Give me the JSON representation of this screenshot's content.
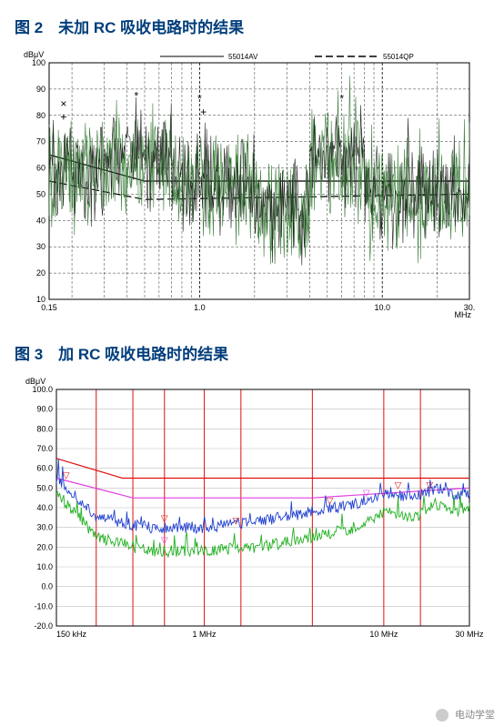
{
  "fig2": {
    "title": "图 2　未加 RC 吸收电路时的结果",
    "type": "line-spectrum",
    "y_label": "dBμV",
    "x_label": "MHz",
    "x_scale": "log",
    "xlim": [
      0.15,
      30
    ],
    "ylim": [
      10,
      100
    ],
    "y_ticks": [
      10,
      20,
      30,
      40,
      50,
      60,
      70,
      80,
      90,
      100
    ],
    "x_ticks_major": [
      0.15,
      1.0,
      10.0,
      30.0
    ],
    "x_tick_labels": [
      "0.15",
      "1.0",
      "10.0",
      "30."
    ],
    "legend": [
      {
        "label": "55014AV",
        "dash": "solid"
      },
      {
        "label": "55014QP",
        "dash": "dash"
      }
    ],
    "limit_lines": {
      "av_solid": [
        [
          0.15,
          65
        ],
        [
          0.5,
          55
        ],
        [
          30,
          55
        ]
      ],
      "qp_dash": [
        [
          0.15,
          55
        ],
        [
          0.5,
          48
        ],
        [
          30,
          50
        ]
      ]
    },
    "trace_colors": {
      "green": "#3a7d3a",
      "black": "#222222"
    },
    "grid_color": "#000000",
    "background_color": "#ffffff",
    "marker_points": [
      {
        "x": 0.18,
        "y": 83,
        "sym": "×"
      },
      {
        "x": 0.18,
        "y": 78,
        "sym": "+"
      },
      {
        "x": 0.45,
        "y": 86,
        "sym": "*"
      },
      {
        "x": 1.0,
        "y": 85,
        "sym": "*"
      },
      {
        "x": 1.05,
        "y": 80,
        "sym": "+"
      },
      {
        "x": 6.0,
        "y": 85,
        "sym": "*"
      }
    ],
    "title_fontsize": 17,
    "axis_fontsize": 9
  },
  "fig3": {
    "title": "图 3　加 RC 吸收电路时的结果",
    "type": "line-spectrum",
    "y_label": "dBμV",
    "x_scale": "log",
    "xlim_labels": [
      "150 kHz",
      "1 MHz",
      "10 MHz",
      "30 MHz"
    ],
    "xlim_pos": [
      0.15,
      1,
      10,
      30
    ],
    "ylim": [
      -20,
      100
    ],
    "y_ticks": [
      -20,
      -10,
      0,
      10,
      20,
      30,
      40,
      50,
      60,
      70,
      80,
      90,
      100
    ],
    "y_tick_labels": [
      "-20.0",
      "-10.0",
      "0.0",
      "10.0",
      "20.0",
      "30.0",
      "40.0",
      "50.0",
      "60.0",
      "70.0",
      "80.0",
      "90.0",
      "100.0"
    ],
    "grid_color": "#bfbfbf",
    "vline_color": "#e01010",
    "background_color": "#ffffff",
    "vlines_x": [
      0.15,
      0.25,
      0.4,
      0.6,
      1.0,
      1.6,
      4.0,
      10,
      16,
      30
    ],
    "limit_lines": {
      "red": {
        "color": "#e01010",
        "pts": [
          [
            0.15,
            65
          ],
          [
            0.35,
            55
          ],
          [
            30,
            55
          ]
        ]
      },
      "pink": {
        "color": "#e040e0",
        "pts": [
          [
            0.15,
            55
          ],
          [
            0.4,
            45
          ],
          [
            4,
            45
          ],
          [
            30,
            50
          ]
        ]
      }
    },
    "traces": {
      "blue": {
        "color": "#2040d0",
        "base": [
          [
            0.15,
            55
          ],
          [
            0.25,
            35
          ],
          [
            0.5,
            30
          ],
          [
            1,
            30
          ],
          [
            2,
            33
          ],
          [
            4,
            38
          ],
          [
            7,
            42
          ],
          [
            10,
            48
          ],
          [
            15,
            45
          ],
          [
            20,
            50
          ],
          [
            25,
            45
          ],
          [
            30,
            48
          ]
        ]
      },
      "green": {
        "color": "#20b020",
        "base": [
          [
            0.15,
            48
          ],
          [
            0.25,
            25
          ],
          [
            0.5,
            18
          ],
          [
            1,
            18
          ],
          [
            2,
            20
          ],
          [
            4,
            25
          ],
          [
            7,
            30
          ],
          [
            10,
            38
          ],
          [
            15,
            35
          ],
          [
            20,
            42
          ],
          [
            25,
            38
          ],
          [
            30,
            40
          ]
        ]
      }
    },
    "markers": [
      {
        "x": 0.17,
        "y": 55,
        "sym": "▽",
        "color": "#e01010"
      },
      {
        "x": 0.6,
        "y": 33,
        "sym": "▽",
        "color": "#e01010"
      },
      {
        "x": 0.6,
        "y": 22,
        "sym": "▽",
        "color": "#e040e0"
      },
      {
        "x": 1.5,
        "y": 32,
        "sym": "▽",
        "color": "#e01010"
      },
      {
        "x": 5,
        "y": 42,
        "sym": "▽",
        "color": "#e01010"
      },
      {
        "x": 8,
        "y": 46,
        "sym": "▽",
        "color": "#e040e0"
      },
      {
        "x": 12,
        "y": 50,
        "sym": "▽",
        "color": "#e01010"
      },
      {
        "x": 18,
        "y": 50,
        "sym": "▽",
        "color": "#e01010"
      }
    ],
    "title_fontsize": 17,
    "axis_fontsize": 9
  },
  "footer": {
    "text": "电动学堂"
  }
}
